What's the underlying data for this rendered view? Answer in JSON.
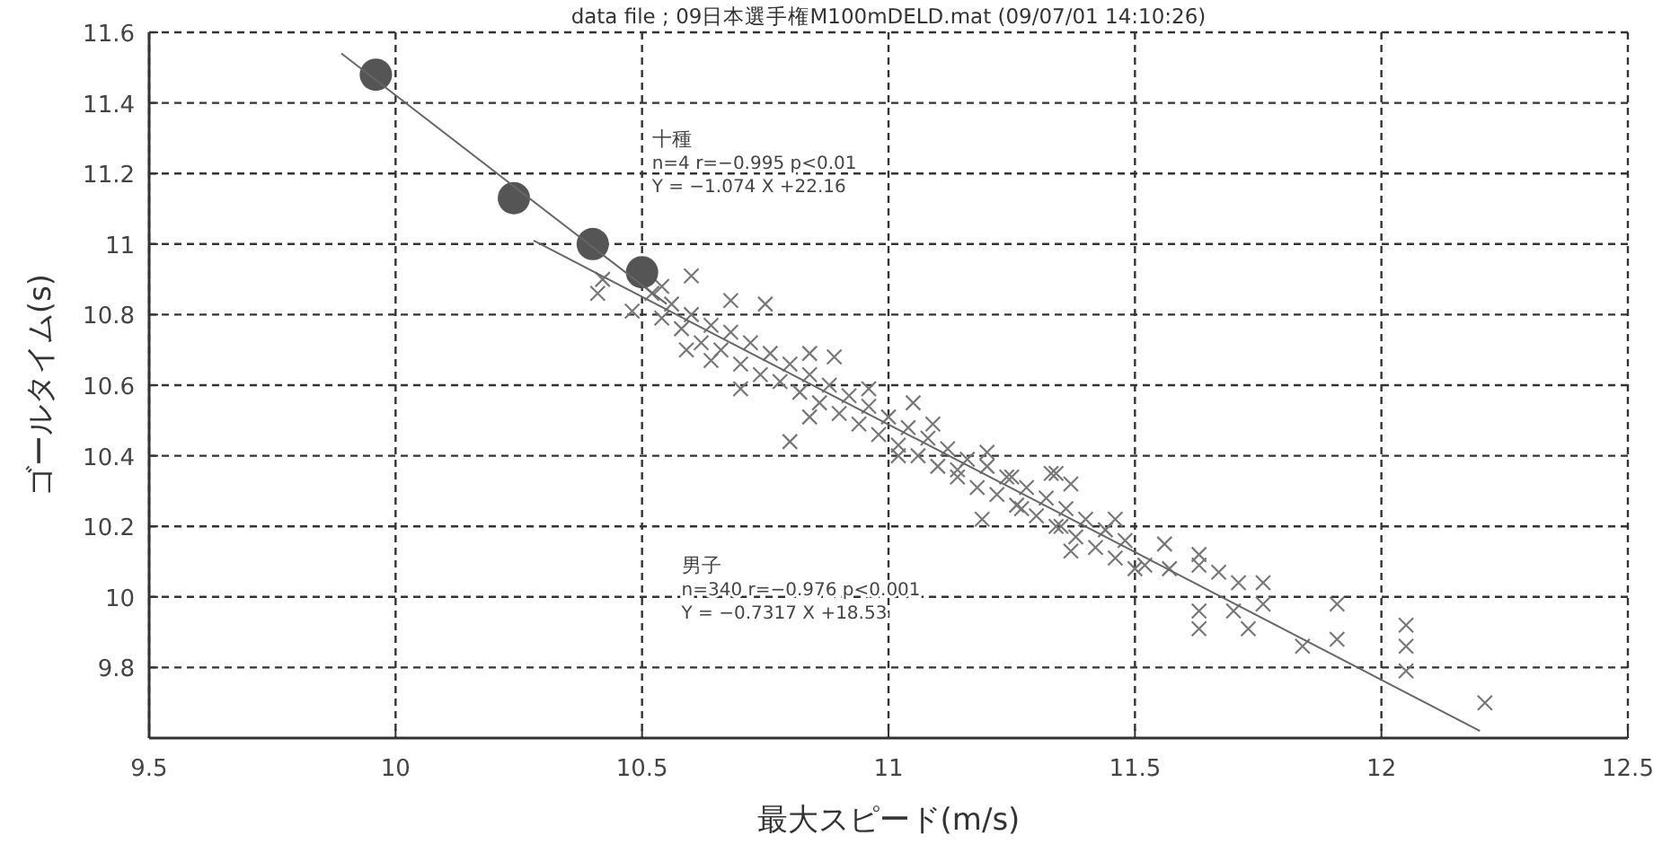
{
  "chart_data": {
    "type": "scatter",
    "title": "data file ; 09日本選手権M100mDELD.mat  (09/07/01 14:10:26)",
    "xlabel": "最大スピード(m/s)",
    "ylabel": "ゴールタイム(s)",
    "annotations": [
      "十種",
      "n=4 r=−0.995 p<0.01",
      "Y = −1.074  X  +22.16",
      "男子",
      "n=340 r=−0.976 p<0.001",
      "Y = −0.7317  X  +18.53"
    ],
    "xlim": [
      9.5,
      12.5
    ],
    "xticks": [
      9.5,
      10,
      10.5,
      11,
      11.5,
      12,
      12.5
    ],
    "ylim": [
      9.6,
      11.6
    ],
    "yticks": [
      9.8,
      10,
      10.2,
      10.4,
      10.6,
      10.8,
      11,
      11.2,
      11.4,
      11.6
    ],
    "grid": true,
    "series": [
      {
        "marker": "cross",
        "color": "#777777",
        "x": [
          11.34,
          11.37,
          11.46,
          11.56,
          11.63,
          11.63,
          11.63,
          11.67,
          11.71,
          11.76,
          11.76,
          11.73,
          11.7,
          11.84,
          11.91,
          11.91,
          12.05,
          12.05,
          12.05,
          12.21,
          11.63,
          11.52,
          11.57,
          10.6,
          10.41,
          10.42,
          10.54,
          10.48,
          10.59,
          10.68,
          10.75,
          10.64,
          10.7,
          10.84,
          10.89,
          10.8,
          10.84,
          10.96,
          11.05,
          11.02,
          11.09,
          11.14,
          11.2,
          11.19,
          11.27,
          11.33,
          11.35,
          11.37,
          11.25,
          10.52,
          10.54,
          10.56,
          10.58,
          10.6,
          10.62,
          10.64,
          10.66,
          10.68,
          10.7,
          10.72,
          10.74,
          10.76,
          10.78,
          10.8,
          10.82,
          10.84,
          10.86,
          10.88,
          10.9,
          10.92,
          10.94,
          10.96,
          10.98,
          11.0,
          11.02,
          11.04,
          11.06,
          11.08,
          11.1,
          11.12,
          11.14,
          11.16,
          11.18,
          11.2,
          11.22,
          11.24,
          11.26,
          11.28,
          11.3,
          11.32,
          11.34,
          11.36,
          11.38,
          11.4,
          11.42,
          11.44,
          11.46,
          11.48,
          11.5
        ],
        "values": [
          10.35,
          10.32,
          10.22,
          10.15,
          10.12,
          9.96,
          9.91,
          10.07,
          10.04,
          10.04,
          9.98,
          9.91,
          9.96,
          9.86,
          9.98,
          9.88,
          9.92,
          9.86,
          9.79,
          9.7,
          10.09,
          10.09,
          10.08,
          10.91,
          10.86,
          10.9,
          10.88,
          10.81,
          10.7,
          10.84,
          10.83,
          10.67,
          10.59,
          10.69,
          10.68,
          10.44,
          10.51,
          10.59,
          10.55,
          10.4,
          10.49,
          10.36,
          10.41,
          10.22,
          10.25,
          10.35,
          10.2,
          10.13,
          10.34,
          10.86,
          10.79,
          10.83,
          10.76,
          10.8,
          10.72,
          10.77,
          10.7,
          10.75,
          10.66,
          10.72,
          10.63,
          10.69,
          10.61,
          10.66,
          10.58,
          10.63,
          10.55,
          10.6,
          10.52,
          10.57,
          10.49,
          10.54,
          10.46,
          10.51,
          10.43,
          10.48,
          10.4,
          10.45,
          10.37,
          10.42,
          10.34,
          10.39,
          10.31,
          10.37,
          10.29,
          10.34,
          10.26,
          10.31,
          10.23,
          10.28,
          10.2,
          10.25,
          10.17,
          10.22,
          10.14,
          10.19,
          10.11,
          10.16,
          10.08
        ]
      },
      {
        "marker": "circle",
        "color": "#555555",
        "x": [
          9.96,
          10.24,
          10.4,
          10.5
        ],
        "values": [
          11.48,
          11.13,
          11.0,
          10.92
        ]
      },
      {
        "type": "line",
        "color": "#666666",
        "x": [
          9.89,
          10.55
        ],
        "values": [
          11.54,
          10.83
        ]
      },
      {
        "type": "line",
        "color": "#666666",
        "x": [
          10.28,
          12.2
        ],
        "values": [
          11.01,
          9.62
        ]
      }
    ]
  }
}
